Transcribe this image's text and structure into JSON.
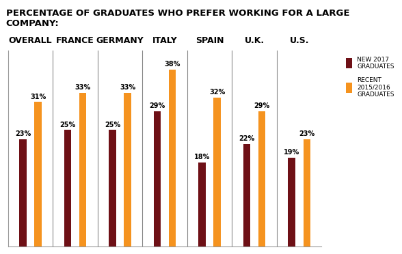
{
  "chart_data": {
    "type": "bar",
    "title": "PERCENTAGE OF GRADUATES WHO PREFER WORKING FOR A LARGE COMPANY:",
    "categories": [
      "OVERALL",
      "FRANCE",
      "GERMANY",
      "ITALY",
      "SPAIN",
      "U.K.",
      "U.S."
    ],
    "series": [
      {
        "name": "NEW 2017\nGRADUATES",
        "color": "#6e1016",
        "values": [
          23,
          25,
          25,
          29,
          18,
          22,
          19
        ],
        "value_labels": [
          "23%",
          "25%",
          "25%",
          "29%",
          "18%",
          "22%",
          "19%"
        ]
      },
      {
        "name": "RECENT\n2015/2016\nGRADUATES",
        "color": "#f5931f",
        "values": [
          31,
          33,
          33,
          38,
          32,
          29,
          23
        ],
        "value_labels": [
          "31%",
          "33%",
          "33%",
          "38%",
          "32%",
          "29%",
          "23%"
        ]
      }
    ],
    "ylim": [
      0,
      42
    ],
    "yticks": [],
    "data_labels": true,
    "tick_labels": "x",
    "legend": "upper right",
    "grid": false
  }
}
